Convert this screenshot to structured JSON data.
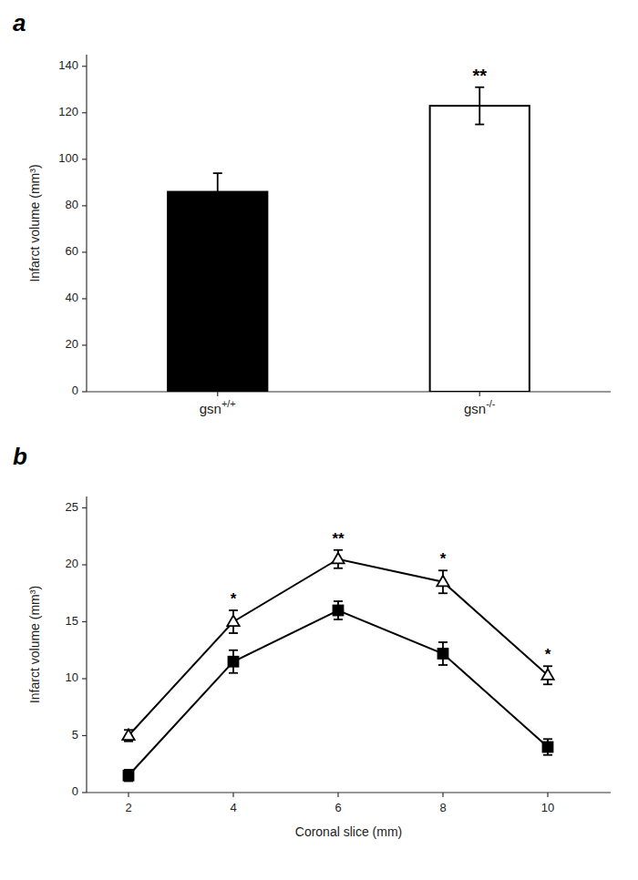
{
  "chart_data": [
    {
      "type": "bar",
      "title": "a",
      "categories": [
        "gsn+/+",
        "gsn-/-"
      ],
      "values": [
        86,
        123
      ],
      "errors": [
        8,
        8
      ],
      "colors": [
        "#000000",
        "#ffffff"
      ],
      "annotations": [
        null,
        "**"
      ],
      "ylabel": "Infarct volume (mm³)",
      "ylim": [
        0,
        145
      ],
      "yticks": [
        0,
        20,
        40,
        60,
        80,
        100,
        120,
        140
      ],
      "grid": false
    },
    {
      "type": "line",
      "title": "b",
      "x": [
        2,
        4,
        6,
        8,
        10
      ],
      "series": [
        {
          "color": "#000000",
          "marker": "square",
          "values": [
            1.5,
            11.5,
            16.0,
            12.2,
            4.0
          ],
          "errors": [
            0.5,
            1.0,
            0.8,
            1.0,
            0.7
          ]
        },
        {
          "color": "#000000",
          "marker": "open-triangle",
          "values": [
            5.0,
            15.0,
            20.5,
            18.5,
            10.3
          ],
          "errors": [
            0.5,
            1.0,
            0.8,
            1.0,
            0.8
          ],
          "annotations": [
            null,
            "*",
            "**",
            "*",
            "*"
          ]
        }
      ],
      "ylabel": "Infarct volume (mm³)",
      "xlabel": "Coronal slice (mm)",
      "xlim": [
        1.2,
        11.2
      ],
      "xticks": [
        2,
        4,
        6,
        8,
        10
      ],
      "ylim": [
        0,
        26
      ],
      "yticks": [
        0,
        5,
        10,
        15,
        20,
        25
      ],
      "grid": false
    }
  ]
}
